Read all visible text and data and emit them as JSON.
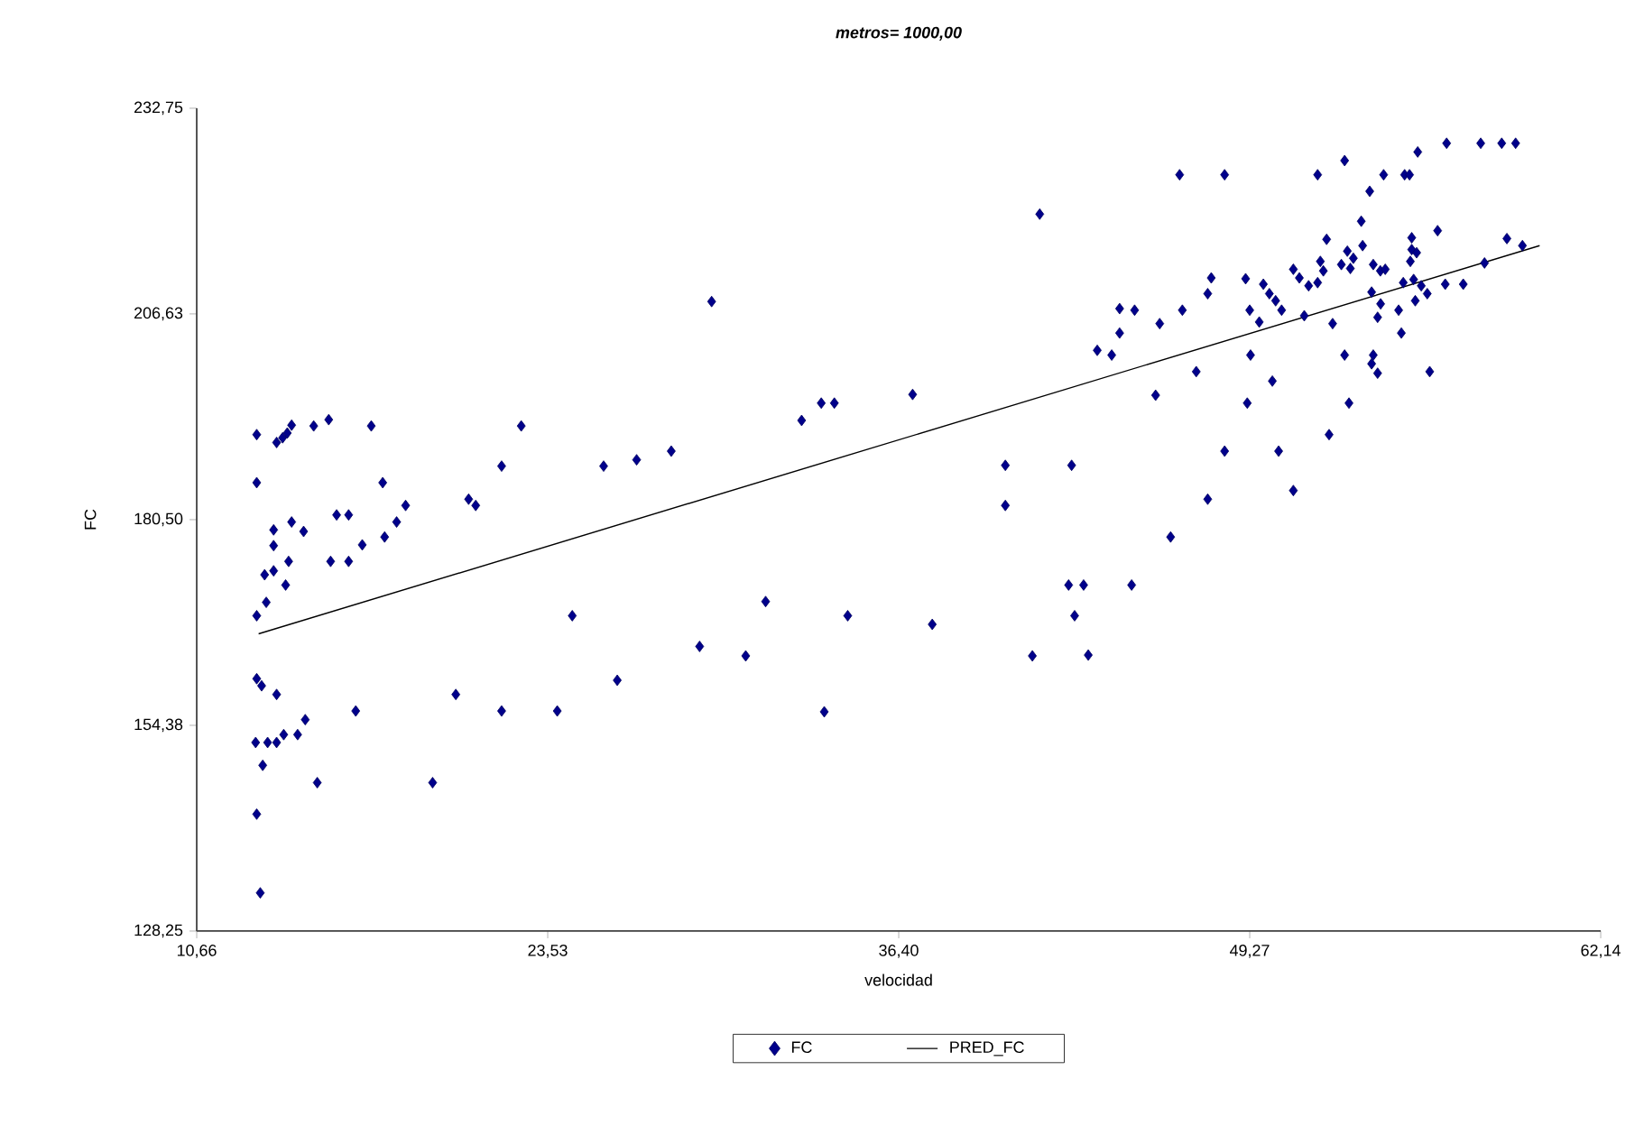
{
  "chart_data": {
    "type": "scatter",
    "title": "**metros= 1000,00**",
    "xlabel": "velocidad",
    "ylabel": "FC",
    "xlim": [
      10.66,
      62.14
    ],
    "ylim": [
      128.25,
      232.75
    ],
    "xticks": [
      {
        "value": 10.66,
        "label": "10,66"
      },
      {
        "value": 23.53,
        "label": "23,53"
      },
      {
        "value": 36.4,
        "label": "36,40"
      },
      {
        "value": 49.27,
        "label": "49,27"
      },
      {
        "value": 62.14,
        "label": "62,14"
      }
    ],
    "yticks": [
      {
        "value": 128.25,
        "label": "128,25"
      },
      {
        "value": 154.38,
        "label": "154,38"
      },
      {
        "value": 180.5,
        "label": "180,50"
      },
      {
        "value": 206.63,
        "label": "206,63"
      },
      {
        "value": 232.75,
        "label": "232,75"
      }
    ],
    "legend": "bottom",
    "series": [
      {
        "name": "FC",
        "marker": "diamond",
        "color": "#00008b",
        "x": [
          12.86,
          13.59,
          13.81,
          13.98,
          14.14,
          14.95,
          15.5,
          17.06,
          12.86,
          17.48,
          18.32,
          13.48,
          14.14,
          14.58,
          15.79,
          16.23,
          13.48,
          14.03,
          13.15,
          13.48,
          13.92,
          15.57,
          16.23,
          16.73,
          17.55,
          17.99,
          20.63,
          20.89,
          21.84,
          22.56,
          13.21,
          12.86,
          25.58,
          26.79,
          24.43,
          12.86,
          13.04,
          13.59,
          16.49,
          20.16,
          21.84,
          23.88,
          26.08,
          12.82,
          13.26,
          13.59,
          13.85,
          14.36,
          14.64,
          13.08,
          15.08,
          19.31,
          12.86,
          12.99,
          41.57,
          29.54,
          32.84,
          33.56,
          34.04,
          36.91,
          28.06,
          40.31,
          40.31,
          42.74,
          42.63,
          43.18,
          44.94,
          42.85,
          43.35,
          46.37,
          47.73,
          31.52,
          29.1,
          30.79,
          34.53,
          37.63,
          41.3,
          33.67,
          46.7,
          48.35,
          51.76,
          52.75,
          54.18,
          54.95,
          55.13,
          55.43,
          56.49,
          57.74,
          58.51,
          59.02,
          53.67,
          53.36,
          52.09,
          56.16,
          55.21,
          58.7,
          59.27,
          57.88,
          53.41,
          52.85,
          53.07,
          52.63,
          52.96,
          51.86,
          51.97,
          51.76,
          51.43,
          50.87,
          51.09,
          53.8,
          54.06,
          54.24,
          55.21,
          55.16,
          55.39,
          53.74,
          54.07,
          53.96,
          54.9,
          55.28,
          55.56,
          55.78,
          55.34,
          54.73,
          56.44,
          57.1,
          54.83,
          49.77,
          49.99,
          50.22,
          50.44,
          49.12,
          49.27,
          49.62,
          47.86,
          47.73,
          46.8,
          45.97,
          44.5,
          45.05,
          44.5,
          43.68,
          44.21,
          51.27,
          52.31,
          49.3,
          52.75,
          53.8,
          53.74,
          53.96,
          55.87,
          47.31,
          50.1,
          45.82,
          49.18,
          52.91,
          52.18,
          48.35,
          50.33,
          50.87
        ],
        "values": [
          191.3,
          190.3,
          190.9,
          191.5,
          192.5,
          192.4,
          193.2,
          192.4,
          185.2,
          185.2,
          182.3,
          179.2,
          180.2,
          179.0,
          181.1,
          181.1,
          177.2,
          175.2,
          173.5,
          174.0,
          172.2,
          175.2,
          175.2,
          177.3,
          178.3,
          180.2,
          183.1,
          182.3,
          187.3,
          192.4,
          170.0,
          168.3,
          187.3,
          188.1,
          168.3,
          160.3,
          159.4,
          158.3,
          156.2,
          158.3,
          156.2,
          156.2,
          160.1,
          152.2,
          152.2,
          152.2,
          153.2,
          153.2,
          155.1,
          149.3,
          147.1,
          147.1,
          143.1,
          133.1,
          219.3,
          208.2,
          193.1,
          195.3,
          195.3,
          196.4,
          189.2,
          187.4,
          182.3,
          187.4,
          172.2,
          172.2,
          172.2,
          168.3,
          163.3,
          178.3,
          183.1,
          170.1,
          164.4,
          163.2,
          168.3,
          167.2,
          163.2,
          156.1,
          224.3,
          224.3,
          224.3,
          226.1,
          224.3,
          224.3,
          224.3,
          227.2,
          228.3,
          228.3,
          228.3,
          228.3,
          222.2,
          218.4,
          216.1,
          217.2,
          216.3,
          216.2,
          215.3,
          213.1,
          215.3,
          214.6,
          213.7,
          212.9,
          212.4,
          213.3,
          212.1,
          210.6,
          210.2,
          212.3,
          211.2,
          212.9,
          212.1,
          212.3,
          214.8,
          213.3,
          214.4,
          209.4,
          207.9,
          206.2,
          210.6,
          211.0,
          210.2,
          209.2,
          208.3,
          207.1,
          210.4,
          210.4,
          204.2,
          210.4,
          209.2,
          208.3,
          207.1,
          211.1,
          207.1,
          205.6,
          211.2,
          209.2,
          207.1,
          205.4,
          207.3,
          207.1,
          204.2,
          202.0,
          201.4,
          206.4,
          205.4,
          201.4,
          201.4,
          201.4,
          200.3,
          199.1,
          199.3,
          199.3,
          198.1,
          196.3,
          195.3,
          195.3,
          191.3,
          189.2,
          189.2,
          184.2
        ]
      },
      {
        "name": "PRED_FC",
        "type": "line",
        "line_style": "solid",
        "color": "#000000",
        "x": [
          12.93,
          59.9
        ],
        "values": [
          166.0,
          215.3
        ]
      }
    ]
  }
}
